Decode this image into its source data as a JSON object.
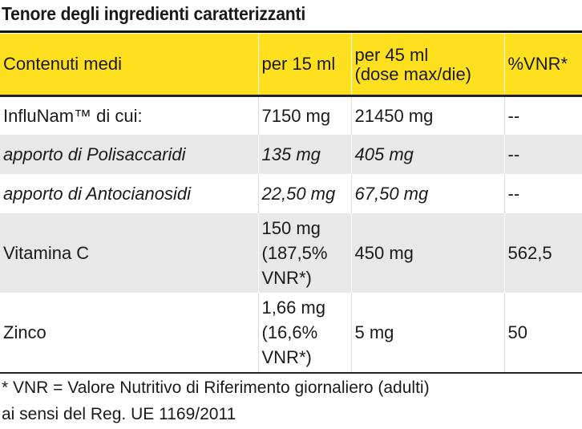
{
  "title": "Tenore degli ingredienti caratterizzanti",
  "table": {
    "headers": {
      "col1": "Contenuti medi",
      "col2": "per 15 ml",
      "col3_line1": "per 45 ml",
      "col3_line2": "(dose max/die)",
      "col4": "%VNR*"
    },
    "rows": [
      {
        "name": "InfluNam™ di cui:",
        "per15": "7150 mg",
        "per45": "21450 mg",
        "vnr": "--"
      },
      {
        "name": "apporto di Polisaccaridi",
        "per15": "135 mg",
        "per45": "405 mg",
        "vnr": "--"
      },
      {
        "name": "apporto di Antocianosidi",
        "per15": "22,50 mg",
        "per45": "67,50 mg",
        "vnr": "--"
      },
      {
        "name": "Vitamina C",
        "per15_l1": "150 mg",
        "per15_l2": "(187,5%",
        "per15_l3": "VNR*)",
        "per45": "450 mg",
        "vnr": "562,5"
      },
      {
        "name": "Zinco",
        "per15_l1": "1,66 mg",
        "per15_l2": "(16,6%",
        "per15_l3": "VNR*)",
        "per45": "5 mg",
        "vnr": "50"
      }
    ]
  },
  "footnote": {
    "line1": "* VNR = Valore Nutritivo di Riferimento giornaliero (adulti)",
    "line2": "ai sensi del Reg. UE 1169/2011"
  },
  "colors": {
    "header_bg": "#ffe01e",
    "stripe_bg": "#e8e8e8",
    "text": "#1a1a1a"
  }
}
